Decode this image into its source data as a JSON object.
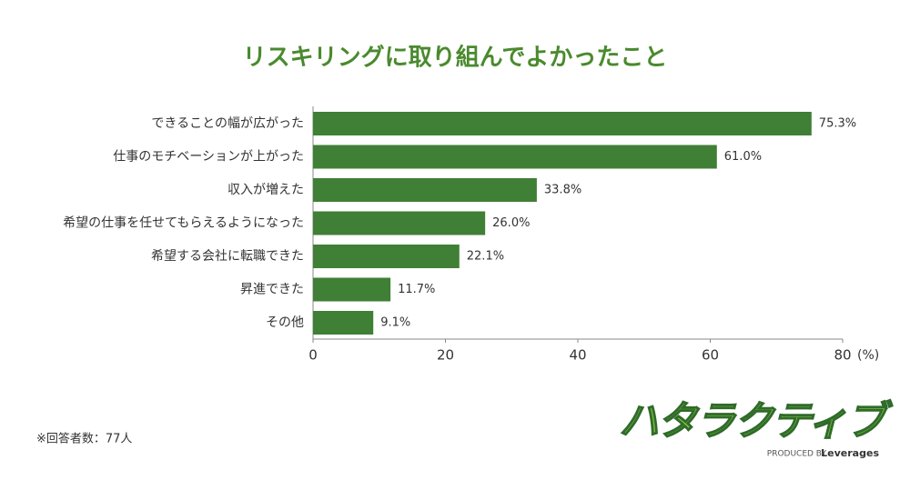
{
  "chart_data": {
    "type": "barh",
    "title": "リスキリングに取り組んでよかったこと",
    "categories": [
      "できることの幅が広がった",
      "仕事のモチベーションが上がった",
      "収入が増えた",
      "希望の仕事を任せてもらえるようになった",
      "希望する会社に転職できた",
      "昇進できた",
      "その他"
    ],
    "values": [
      75.3,
      61.0,
      33.8,
      26.0,
      22.1,
      11.7,
      9.1
    ],
    "value_labels": [
      "75.3%",
      "61.0%",
      "33.8%",
      "26.0%",
      "22.1%",
      "11.7%",
      "9.1%"
    ],
    "color": "#3f7f36",
    "xlim": [
      0,
      80
    ],
    "xticks": [
      0,
      20,
      40,
      60,
      80
    ],
    "x_unit": "(%)",
    "note": "※回答者数：77人",
    "logo": {
      "name": "ハタラクティブ",
      "produced_by": "PRODUCED BY",
      "company": "Leverages"
    }
  }
}
